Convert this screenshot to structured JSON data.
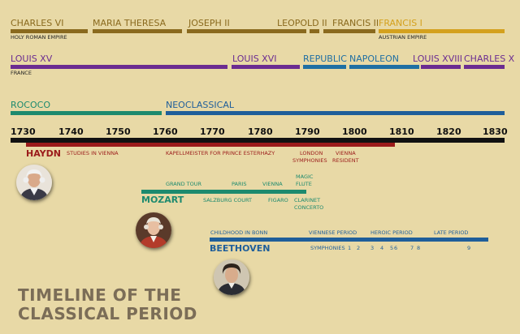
{
  "hre": {
    "rulers": [
      "CHARLES VI",
      "MARIA THERESA",
      "JOSEPH II",
      "LEOPOLD II",
      "FRANCIS II",
      "FRANCIS I"
    ],
    "label": "HOLY ROMAN EMPIRE",
    "label2": "AUSTRIAN EMPIRE",
    "color": "#8a6a1e",
    "color2": "#d4a11e"
  },
  "france": {
    "rulers": [
      "LOUIS XV",
      "LOUIS XVI",
      "REPUBLIC",
      "NAPOLEON",
      "LOUIS XVIII",
      "CHARLES X"
    ],
    "label": "FRANCE",
    "colors": [
      "#6b2c91",
      "#6b2c91",
      "#1f6fa3",
      "#1f6fa3",
      "#6b2c91",
      "#6b2c91"
    ]
  },
  "styles": {
    "items": [
      "ROCOCO",
      "NEOCLASSICAL"
    ],
    "colors": [
      "#1d8a6e",
      "#1f5e9a"
    ]
  },
  "axis": {
    "years": [
      "1730",
      "1740",
      "1750",
      "1760",
      "1770",
      "1780",
      "1790",
      "1800",
      "1810",
      "1820",
      "1830"
    ]
  },
  "haydn": {
    "name": "HAYDN",
    "color": "#9b1b1b",
    "events": [
      "STUDIES IN VIENNA",
      "KAPELLMEISTER FOR PRINCE ESTERHAZY",
      "LONDON",
      "SYMPHONIES",
      "VIENNA",
      "RESIDENT"
    ]
  },
  "mozart": {
    "name": "MOZART",
    "color": "#1d8a6e",
    "events": [
      "GRAND TOUR",
      "PARIS",
      "VIENNA",
      "MAGIC",
      "FLUTE",
      "SALZBURG COURT",
      "FIGARO",
      "CLARINET",
      "CONCERTO"
    ]
  },
  "beethoven": {
    "name": "BEETHOVEN",
    "color": "#1f5e9a",
    "events": [
      "CHILDHOOD IN BONN",
      "VIENNESE PERIOD",
      "HEROIC PERIOD",
      "LATE PERIOD"
    ],
    "symphonies": [
      "SYMPHONIES",
      "1",
      "2",
      "3",
      "4",
      "5",
      "6",
      "7",
      "8",
      "9"
    ]
  },
  "title": {
    "line1": "TIMELINE OF THE",
    "line2": "CLASSICAL PERIOD"
  }
}
